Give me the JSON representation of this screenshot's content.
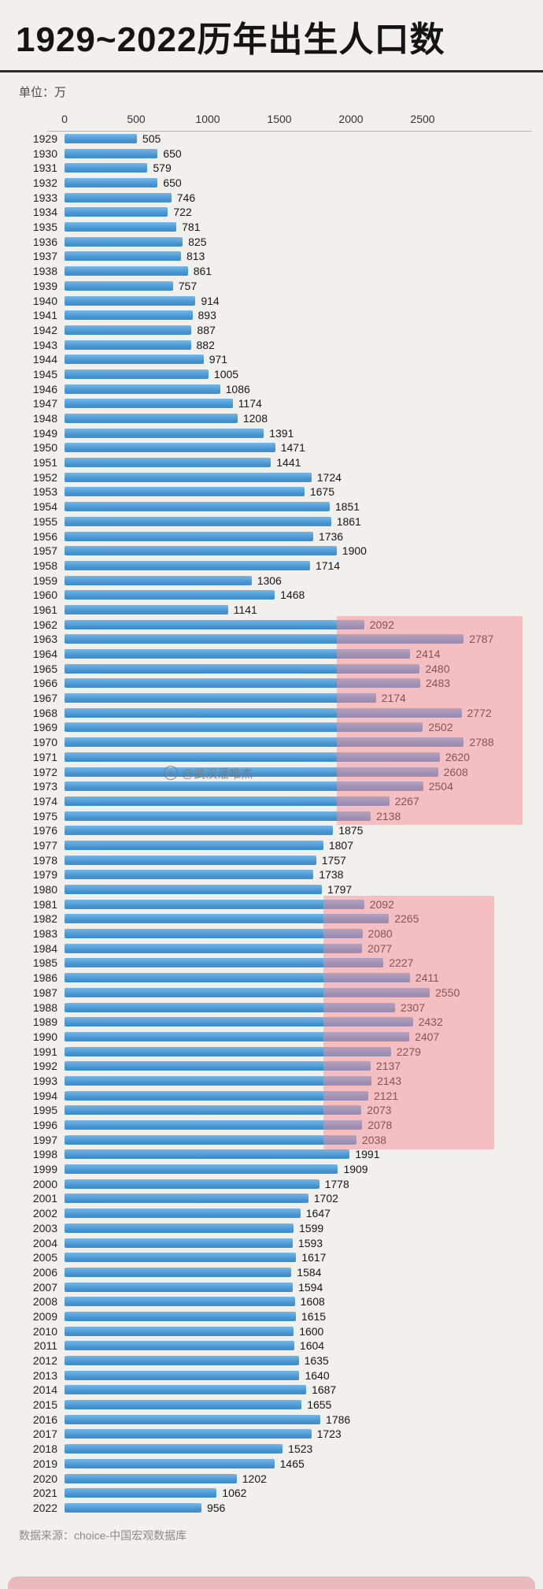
{
  "watermark": {
    "text": "@武汉潘唯杰"
  },
  "chart_data": {
    "type": "bar",
    "orientation": "horizontal",
    "title": "1929~2022历年出生人口数",
    "unit_label": "单位：万",
    "source": "数据来源：choice-中国宏观数据库",
    "x_ticks": [
      0,
      500,
      1000,
      1500,
      2000,
      2500
    ],
    "xlim": [
      0,
      3300
    ],
    "ylabel": "",
    "xlabel": "",
    "bar_color": "#4493d1",
    "highlight_color": "rgba(248,140,150,0.5)",
    "years": [
      1929,
      1930,
      1931,
      1932,
      1933,
      1934,
      1935,
      1936,
      1937,
      1938,
      1939,
      1940,
      1941,
      1942,
      1943,
      1944,
      1945,
      1946,
      1947,
      1948,
      1949,
      1950,
      1951,
      1952,
      1953,
      1954,
      1955,
      1956,
      1957,
      1958,
      1959,
      1960,
      1961,
      1962,
      1963,
      1964,
      1965,
      1966,
      1967,
      1968,
      1969,
      1970,
      1971,
      1972,
      1973,
      1974,
      1975,
      1976,
      1977,
      1978,
      1979,
      1980,
      1981,
      1982,
      1983,
      1984,
      1985,
      1986,
      1987,
      1988,
      1989,
      1990,
      1991,
      1992,
      1993,
      1994,
      1995,
      1996,
      1997,
      1998,
      1999,
      2000,
      2001,
      2002,
      2003,
      2004,
      2005,
      2006,
      2007,
      2008,
      2009,
      2010,
      2011,
      2012,
      2013,
      2014,
      2015,
      2016,
      2017,
      2018,
      2019,
      2020,
      2021,
      2022
    ],
    "values": [
      505,
      650,
      579,
      650,
      746,
      722,
      781,
      825,
      813,
      861,
      757,
      914,
      893,
      887,
      882,
      971,
      1005,
      1086,
      1174,
      1208,
      1391,
      1471,
      1441,
      1724,
      1675,
      1851,
      1861,
      1736,
      1900,
      1714,
      1306,
      1468,
      1141,
      2092,
      2787,
      2414,
      2480,
      2483,
      2174,
      2772,
      2502,
      2788,
      2620,
      2608,
      2504,
      2267,
      2138,
      1875,
      1807,
      1757,
      1738,
      1797,
      2092,
      2265,
      2080,
      2077,
      2227,
      2411,
      2550,
      2307,
      2432,
      2407,
      2279,
      2137,
      2143,
      2121,
      2073,
      2078,
      2038,
      1991,
      1909,
      1778,
      1702,
      1647,
      1599,
      1593,
      1617,
      1584,
      1594,
      1608,
      1615,
      1600,
      1604,
      1635,
      1640,
      1687,
      1655,
      1786,
      1723,
      1523,
      1465,
      1202,
      1062,
      956
    ],
    "highlights": [
      {
        "from_year": 1962,
        "to_year": 1975,
        "from_value": 1900,
        "to_value": 3200
      },
      {
        "from_year": 1981,
        "to_year": 1997,
        "from_value": 1810,
        "to_value": 3000
      }
    ]
  }
}
